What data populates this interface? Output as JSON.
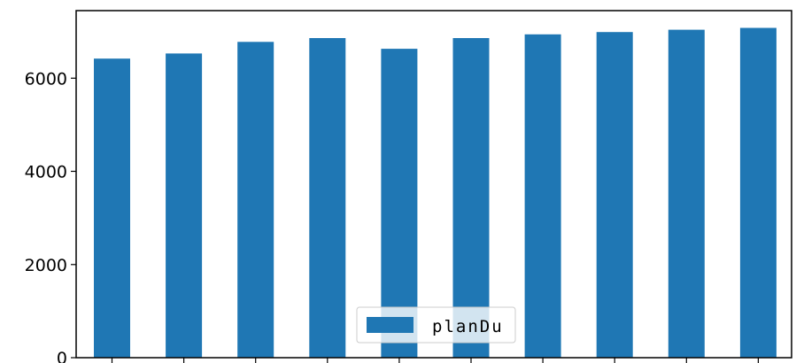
{
  "chart_data": {
    "type": "bar",
    "categories": [
      "",
      "",
      "",
      "",
      "",
      "",
      "",
      "",
      "",
      ""
    ],
    "series": [
      {
        "name": "planDu",
        "color": "#1f77b4",
        "values": [
          6420,
          6530,
          6780,
          6860,
          6630,
          6860,
          6940,
          6990,
          7040,
          7080
        ]
      }
    ],
    "ylim": [
      0,
      7450
    ],
    "yticks": [
      0,
      2000,
      4000,
      6000
    ],
    "ytick_labels": [
      "0",
      "2000",
      "4000",
      "6000"
    ],
    "title": "",
    "xlabel": "",
    "ylabel": "",
    "grid": false,
    "legend_position": "lower-center"
  }
}
